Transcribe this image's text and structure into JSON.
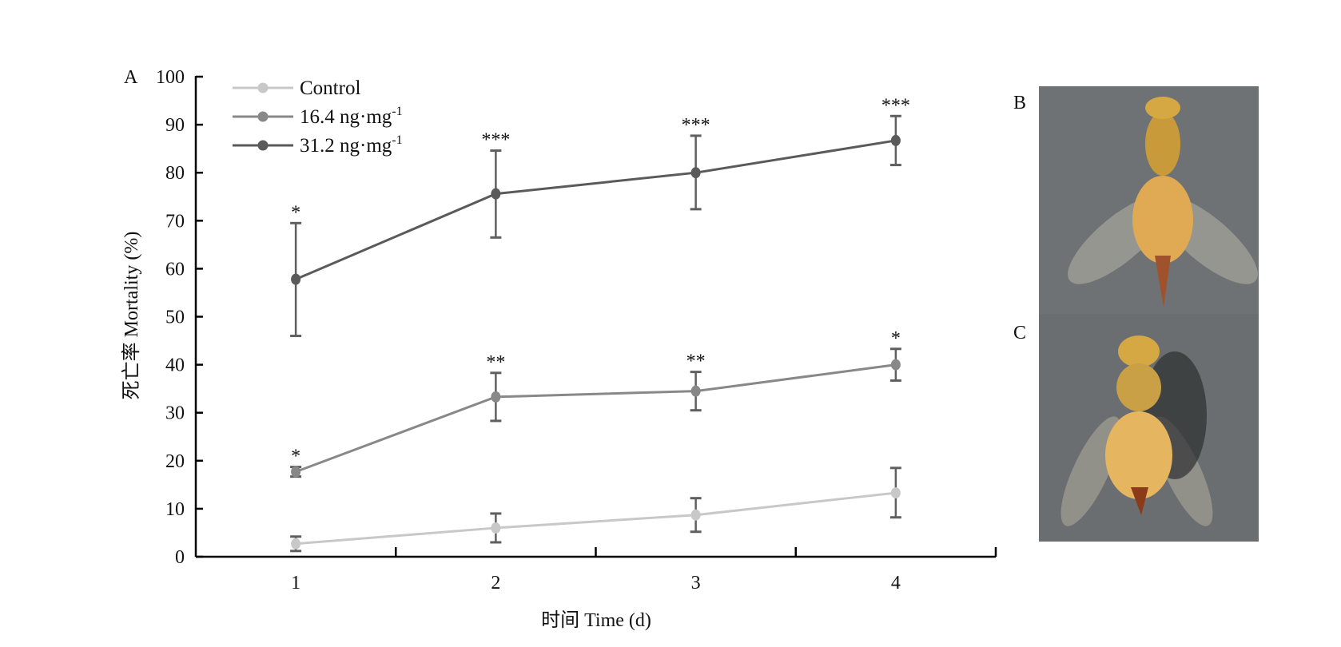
{
  "chart_data": {
    "type": "line",
    "panel_label": "A",
    "xlabel": "时间 Time (d)",
    "ylabel": "死亡率 Mortality (%)",
    "ylim": [
      0,
      100
    ],
    "yticks": [
      "0",
      "10",
      "20",
      "30",
      "40",
      "50",
      "60",
      "70",
      "80",
      "90",
      "100"
    ],
    "xlim": [
      0.5,
      4.5
    ],
    "categories": [
      "1",
      "2",
      "3",
      "4"
    ],
    "legend_position": "top-left",
    "series": [
      {
        "name": "Control",
        "unit_sup": "",
        "color": "#c8c8c8",
        "values": [
          2.7,
          6.0,
          8.7,
          13.3
        ],
        "err_low": [
          1.2,
          3.0,
          5.2,
          8.2
        ],
        "err_high": [
          4.2,
          9.0,
          12.2,
          18.5
        ],
        "significance": [
          "",
          "",
          "",
          ""
        ]
      },
      {
        "name": "16.4 ng·mg",
        "unit_sup": "-1",
        "color": "#888888",
        "values": [
          17.7,
          33.3,
          34.5,
          40.0
        ],
        "err_low": [
          16.7,
          28.3,
          30.5,
          36.7
        ],
        "err_high": [
          18.7,
          38.3,
          38.5,
          43.3
        ],
        "significance": [
          "*",
          "**",
          "**",
          "*"
        ]
      },
      {
        "name": "31.2 ng·mg",
        "unit_sup": "-1",
        "color": "#5a5a5a",
        "values": [
          57.8,
          75.6,
          80.0,
          86.7
        ],
        "err_low": [
          46.0,
          66.5,
          72.4,
          81.6
        ],
        "err_high": [
          69.5,
          84.6,
          87.7,
          91.8
        ],
        "significance": [
          "*",
          "***",
          "***",
          "***"
        ]
      }
    ],
    "error_bar_color": "#5f5f5f"
  },
  "photos": [
    {
      "label": "B"
    },
    {
      "label": "C"
    }
  ]
}
